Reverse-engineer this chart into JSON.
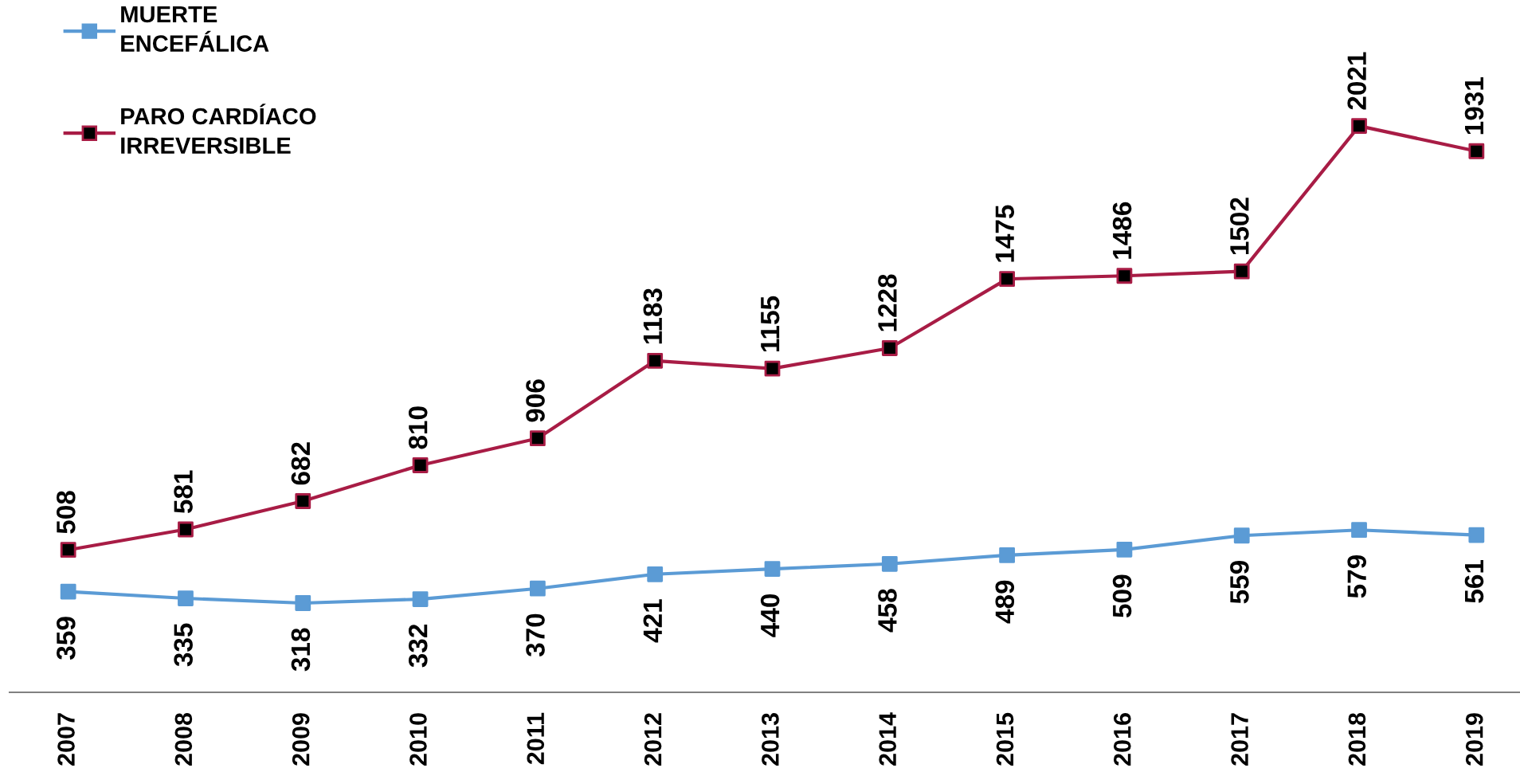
{
  "chart_data": {
    "type": "line",
    "categories": [
      "2007",
      "2008",
      "2009",
      "2010",
      "2011",
      "2012",
      "2013",
      "2014",
      "2015",
      "2016",
      "2017",
      "2018",
      "2019"
    ],
    "series": [
      {
        "name": "MUERTE ENCEFÁLICA",
        "color": "#5b9bd5",
        "values": [
          359,
          335,
          318,
          332,
          370,
          421,
          440,
          458,
          489,
          509,
          559,
          579,
          561
        ]
      },
      {
        "name": "PARO CARDÍACO IRREVERSIBLE",
        "color": "#a81c45",
        "colors": [
          "#000000",
          "#000000",
          "#000000",
          "#000000",
          "#000000",
          "#000000",
          "#000000",
          "#000000",
          "#000000",
          "#000000",
          "#000000",
          "#000000",
          "#000000"
        ],
        "values": [
          508,
          581,
          682,
          810,
          906,
          1183,
          1155,
          1228,
          1475,
          1486,
          1502,
          2021,
          1931
        ]
      }
    ],
    "tick_labels": "x",
    "data_labels": true,
    "marker": "square",
    "line_style": "solid",
    "legend": "top left"
  }
}
